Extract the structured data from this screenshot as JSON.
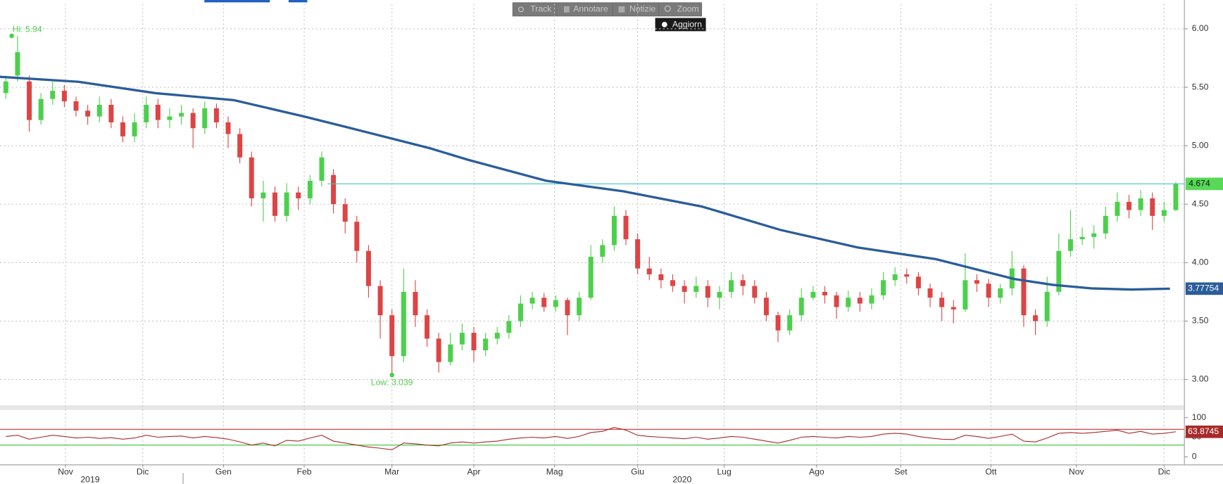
{
  "toolbar": {
    "buttons": [
      "Track",
      "Annotare",
      "Notizie",
      "Zoom"
    ],
    "update": "Aggiorn"
  },
  "chart_data": [
    {
      "type": "candlestick",
      "up_color": "#4cd04c",
      "down_color": "#dd4444",
      "series": {
        "open": [
          5.45,
          5.6,
          5.55,
          5.22,
          5.4,
          5.47,
          5.38,
          5.3,
          5.25,
          5.35,
          5.2,
          5.08,
          5.2,
          5.35,
          5.22,
          5.25,
          5.28,
          5.15,
          5.32,
          5.2,
          5.1,
          4.9,
          4.55,
          4.6,
          4.4,
          4.6,
          4.55,
          4.7,
          4.75,
          4.5,
          4.35,
          4.1,
          3.8,
          3.55,
          3.2,
          3.75,
          3.55,
          3.35,
          3.15,
          3.3,
          3.4,
          3.25,
          3.35,
          3.4,
          3.5,
          3.65,
          3.7,
          3.62,
          3.68,
          3.55,
          3.7,
          4.05,
          4.15,
          4.4,
          4.2,
          3.95,
          3.9,
          3.85,
          3.8,
          3.75,
          3.8,
          3.7,
          3.75,
          3.85,
          3.8,
          3.7,
          3.55,
          3.42,
          3.55,
          3.7,
          3.75,
          3.72,
          3.62,
          3.7,
          3.65,
          3.72,
          3.85,
          3.9,
          3.88,
          3.78,
          3.7,
          3.62,
          3.6,
          3.85,
          3.82,
          3.7,
          3.78,
          3.95,
          3.55,
          3.5,
          3.75,
          4.1,
          4.2,
          4.22,
          4.25,
          4.4,
          4.52,
          4.45,
          4.55,
          4.4,
          4.45
        ],
        "high": [
          5.6,
          5.94,
          5.6,
          5.45,
          5.55,
          5.52,
          5.42,
          5.35,
          5.42,
          5.4,
          5.25,
          5.28,
          5.42,
          5.4,
          5.32,
          5.35,
          5.32,
          5.38,
          5.36,
          5.25,
          5.15,
          4.95,
          4.7,
          4.65,
          4.68,
          4.65,
          4.75,
          4.95,
          4.8,
          4.55,
          4.4,
          4.15,
          3.85,
          3.6,
          3.95,
          3.85,
          3.6,
          3.4,
          3.4,
          3.48,
          3.45,
          3.4,
          3.45,
          3.55,
          3.72,
          3.75,
          3.74,
          3.72,
          3.7,
          3.75,
          4.15,
          4.2,
          4.48,
          4.45,
          4.25,
          4.05,
          3.95,
          3.9,
          3.85,
          3.88,
          3.85,
          3.8,
          3.92,
          3.9,
          3.85,
          3.75,
          3.58,
          3.6,
          3.78,
          3.8,
          3.8,
          3.75,
          3.76,
          3.75,
          3.78,
          3.92,
          3.96,
          3.95,
          3.92,
          3.82,
          3.75,
          3.68,
          4.08,
          3.9,
          3.86,
          3.82,
          4.1,
          3.98,
          3.6,
          3.88,
          4.25,
          4.45,
          4.3,
          4.32,
          4.48,
          4.6,
          4.58,
          4.62,
          4.6,
          4.52,
          4.69
        ],
        "low": [
          5.4,
          5.55,
          5.12,
          5.18,
          5.35,
          5.33,
          5.25,
          5.18,
          5.2,
          5.15,
          5.03,
          5.03,
          5.15,
          5.15,
          5.15,
          5.18,
          4.98,
          5.1,
          5.15,
          4.98,
          4.85,
          4.48,
          4.35,
          4.35,
          4.35,
          4.45,
          4.5,
          4.65,
          4.42,
          4.25,
          4.0,
          3.7,
          3.35,
          3.039,
          3.15,
          3.45,
          3.28,
          3.06,
          3.12,
          3.25,
          3.15,
          3.2,
          3.3,
          3.35,
          3.45,
          3.6,
          3.58,
          3.58,
          3.38,
          3.5,
          3.68,
          4.0,
          4.1,
          4.15,
          3.9,
          3.85,
          3.78,
          3.75,
          3.65,
          3.7,
          3.62,
          3.6,
          3.7,
          3.72,
          3.65,
          3.5,
          3.32,
          3.38,
          3.5,
          3.68,
          3.65,
          3.52,
          3.58,
          3.58,
          3.6,
          3.68,
          3.8,
          3.82,
          3.72,
          3.62,
          3.5,
          3.48,
          3.58,
          3.75,
          3.62,
          3.65,
          3.72,
          3.45,
          3.38,
          3.45,
          3.72,
          4.05,
          4.15,
          4.12,
          4.2,
          4.35,
          4.38,
          4.4,
          4.28,
          4.35,
          4.44
        ],
        "close": [
          5.55,
          5.8,
          5.22,
          5.4,
          5.47,
          5.38,
          5.3,
          5.25,
          5.35,
          5.2,
          5.08,
          5.2,
          5.35,
          5.22,
          5.25,
          5.28,
          5.15,
          5.32,
          5.2,
          5.1,
          4.9,
          4.55,
          4.6,
          4.4,
          4.6,
          4.55,
          4.7,
          4.9,
          4.5,
          4.35,
          4.1,
          3.8,
          3.55,
          3.2,
          3.75,
          3.55,
          3.35,
          3.15,
          3.3,
          3.4,
          3.25,
          3.35,
          3.4,
          3.5,
          3.65,
          3.7,
          3.62,
          3.68,
          3.55,
          3.7,
          4.05,
          4.15,
          4.4,
          4.2,
          3.95,
          3.9,
          3.85,
          3.8,
          3.75,
          3.8,
          3.7,
          3.75,
          3.85,
          3.8,
          3.7,
          3.55,
          3.42,
          3.55,
          3.7,
          3.75,
          3.72,
          3.62,
          3.7,
          3.65,
          3.72,
          3.85,
          3.9,
          3.88,
          3.78,
          3.7,
          3.62,
          3.6,
          3.85,
          3.82,
          3.7,
          3.78,
          3.95,
          3.55,
          3.5,
          3.75,
          4.1,
          4.2,
          4.22,
          4.25,
          4.4,
          4.52,
          4.45,
          4.55,
          4.4,
          4.45,
          4.674
        ]
      },
      "moving_average": {
        "color": "#2a5d9a",
        "x": [
          -0.5,
          6.2,
          12.8,
          19.5,
          25.5,
          29.5,
          36.2,
          39.5,
          46.2,
          52.8,
          59.5,
          66.2,
          72.8,
          79.5,
          86.2,
          89.5,
          92.8,
          96.2,
          99.5
        ],
        "values": [
          5.59,
          5.547,
          5.45,
          5.39,
          5.25,
          5.15,
          4.98,
          4.88,
          4.7,
          4.61,
          4.48,
          4.28,
          4.13,
          4.03,
          3.86,
          3.81,
          3.78,
          3.77,
          3.77754
        ],
        "last_label": "3.77754"
      },
      "last_price": {
        "value": 4.674,
        "label": "4.674",
        "from_x": 27.5,
        "color": "#3cc8c8",
        "box_color": "#57d957"
      },
      "hi": {
        "label": "Hi: 5.94",
        "value": 5.94,
        "x": 0.5
      },
      "low": {
        "label": "Low: 3.039",
        "value": 3.039,
        "x": 33
      },
      "ylim": [
        2.78,
        6.213
      ],
      "yticks": [
        {
          "value": 3,
          "label": "3.00"
        },
        {
          "value": 3.5,
          "label": "3.50"
        },
        {
          "value": 4,
          "label": "4.00"
        },
        {
          "value": 4.5,
          "label": "4.50"
        },
        {
          "value": 5,
          "label": "5.00"
        },
        {
          "value": 5.5,
          "label": "5.50"
        },
        {
          "value": 6,
          "label": "6.00"
        }
      ],
      "xlim": [
        -0.5,
        100.7
      ],
      "xticks": [
        {
          "value": 5.1,
          "label": "Nov"
        },
        {
          "value": 11.7,
          "label": "Dic"
        },
        {
          "value": 18.6,
          "label": "Gen"
        },
        {
          "value": 25.5,
          "label": "Feb"
        },
        {
          "value": 33,
          "label": "Mar"
        },
        {
          "value": 40,
          "label": "Apr"
        },
        {
          "value": 46.9,
          "label": "Mag"
        },
        {
          "value": 54,
          "label": "Giu"
        },
        {
          "value": 61.4,
          "label": "Lug"
        },
        {
          "value": 69.3,
          "label": "Ago"
        },
        {
          "value": 76.5,
          "label": "Set"
        },
        {
          "value": 84.2,
          "label": "Ott"
        },
        {
          "value": 91.5,
          "label": "Nov"
        },
        {
          "value": 99,
          "label": "Dic"
        }
      ],
      "years": [
        {
          "value": 7.2,
          "label": "2019"
        },
        {
          "value": 57.8,
          "label": "2020"
        }
      ],
      "grid": true
    },
    {
      "type": "line",
      "color": "#a82a2a",
      "values": [
        52,
        55,
        45,
        50,
        55,
        52,
        48,
        50,
        47,
        49,
        45,
        48,
        55,
        50,
        52,
        53,
        48,
        52,
        49,
        45,
        38,
        30,
        35,
        28,
        42,
        40,
        48,
        55,
        40,
        35,
        30,
        25,
        22,
        18,
        35,
        33,
        30,
        28,
        35,
        38,
        35,
        38,
        40,
        45,
        48,
        50,
        48,
        52,
        47,
        52,
        62,
        65,
        75,
        68,
        55,
        52,
        50,
        48,
        46,
        50,
        45,
        48,
        52,
        50,
        45,
        40,
        35,
        42,
        50,
        52,
        50,
        48,
        52,
        50,
        52,
        58,
        60,
        58,
        52,
        48,
        45,
        44,
        55,
        52,
        47,
        52,
        58,
        40,
        38,
        48,
        60,
        62,
        60,
        62,
        65,
        68,
        60,
        65,
        58,
        60,
        63.8745
      ],
      "last_label": "63.8745",
      "bands": [
        {
          "value": 70,
          "color": "#d03030"
        },
        {
          "value": 30,
          "color": "#38c038"
        }
      ],
      "ylim": [
        -19.6,
        119.6
      ],
      "yticks": [
        0,
        50,
        100
      ]
    }
  ]
}
